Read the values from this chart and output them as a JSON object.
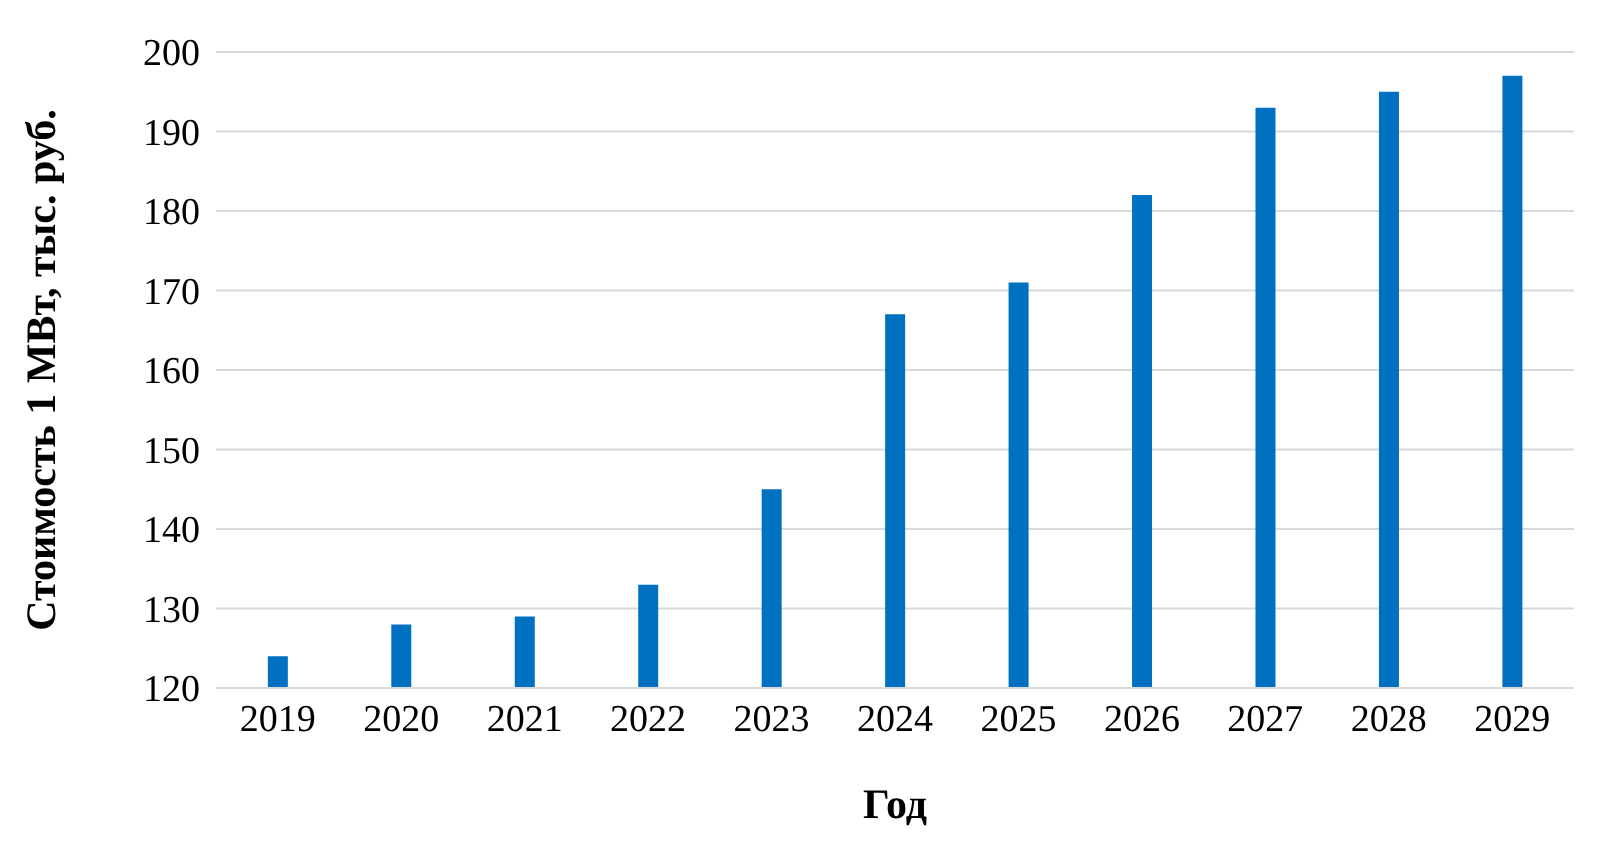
{
  "chart_data": {
    "type": "bar",
    "xlabel": "Год",
    "ylabel": "Стоимость 1 МВт, тыс. руб.",
    "categories": [
      "2019",
      "2020",
      "2021",
      "2022",
      "2023",
      "2024",
      "2025",
      "2026",
      "2027",
      "2028",
      "2029"
    ],
    "values": [
      124,
      128,
      129,
      133,
      145,
      167,
      171,
      182,
      193,
      195,
      197
    ],
    "color": "#0070c0",
    "ylim": [
      120,
      200
    ],
    "yticks": [
      120,
      130,
      140,
      150,
      160,
      170,
      180,
      190,
      200
    ],
    "grid": "y"
  }
}
